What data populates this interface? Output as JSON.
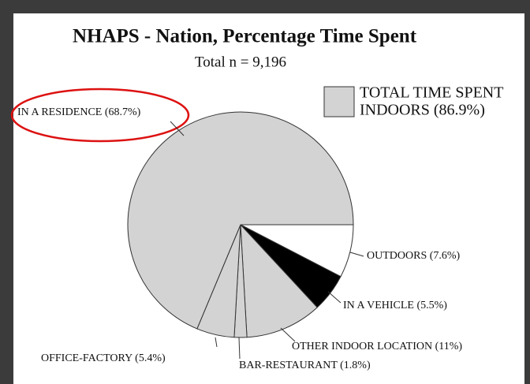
{
  "chart_data": {
    "type": "pie",
    "title": "NHAPS - Nation, Percentage Time Spent",
    "subtitle": "Total n = 9,196",
    "categories": [
      "OUTDOORS (7.6%)",
      "IN A VEHICLE (5.5%)",
      "OTHER INDOOR LOCATION (11%)",
      "BAR-RESTAURANT (1.8%)",
      "OFFICE-FACTORY (5.4%)",
      "IN A RESIDENCE (68.7%)"
    ],
    "values": [
      7.6,
      5.5,
      11,
      1.8,
      5.4,
      68.7
    ],
    "colors": [
      "#ffffff",
      "#000000",
      "#d3d3d3",
      "#d3d3d3",
      "#d3d3d3",
      "#d3d3d3"
    ],
    "legend": {
      "label": [
        "TOTAL TIME SPENT",
        "INDOORS (86.9%)"
      ],
      "color": "#d3d3d3"
    }
  }
}
